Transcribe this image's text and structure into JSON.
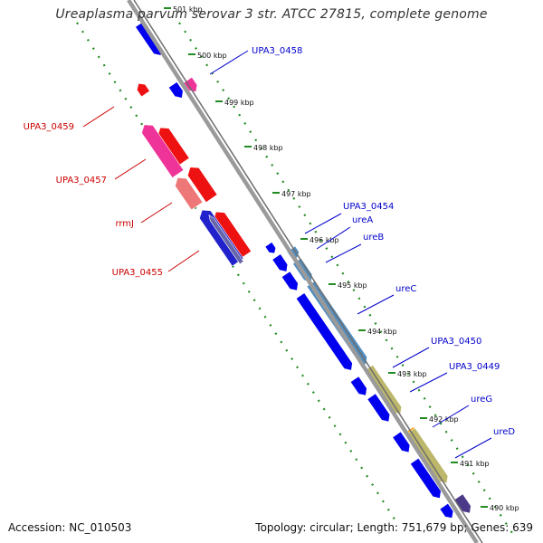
{
  "title": "Ureaplasma parvum serovar 3 str. ATCC 27815, complete genome",
  "accession": "Accession: NC_010503",
  "topology": "Topology: circular; Length: 751,679 bp; Genes: 639",
  "colors": {
    "backbone": "#9a9a9a",
    "tick_line": "#228b22",
    "plus_label": "#0000cc",
    "minus_label": "#cc0000"
  },
  "ticks": [
    "501 kbp",
    "500 kbp",
    "499 kbp",
    "498 kbp",
    "497 kbp",
    "496 kbp",
    "495 kbp",
    "494 kbp",
    "493 kbp",
    "492 kbp",
    "491 kbp",
    "490 kbp"
  ],
  "gene_labels": [
    {
      "text": "UPA3_0458",
      "strand": "plus"
    },
    {
      "text": "UPA3_0454",
      "strand": "plus"
    },
    {
      "text": "ureA",
      "strand": "plus"
    },
    {
      "text": "ureB",
      "strand": "plus"
    },
    {
      "text": "ureC",
      "strand": "plus"
    },
    {
      "text": "UPA3_0450",
      "strand": "plus"
    },
    {
      "text": "UPA3_0449",
      "strand": "plus"
    },
    {
      "text": "ureG",
      "strand": "plus"
    },
    {
      "text": "ureD",
      "strand": "plus"
    },
    {
      "text": "UPA3_0459",
      "strand": "minus"
    },
    {
      "text": "UPA3_0457",
      "strand": "minus"
    },
    {
      "text": "rrmJ",
      "strand": "minus"
    },
    {
      "text": "UPA3_0455",
      "strand": "minus"
    }
  ]
}
